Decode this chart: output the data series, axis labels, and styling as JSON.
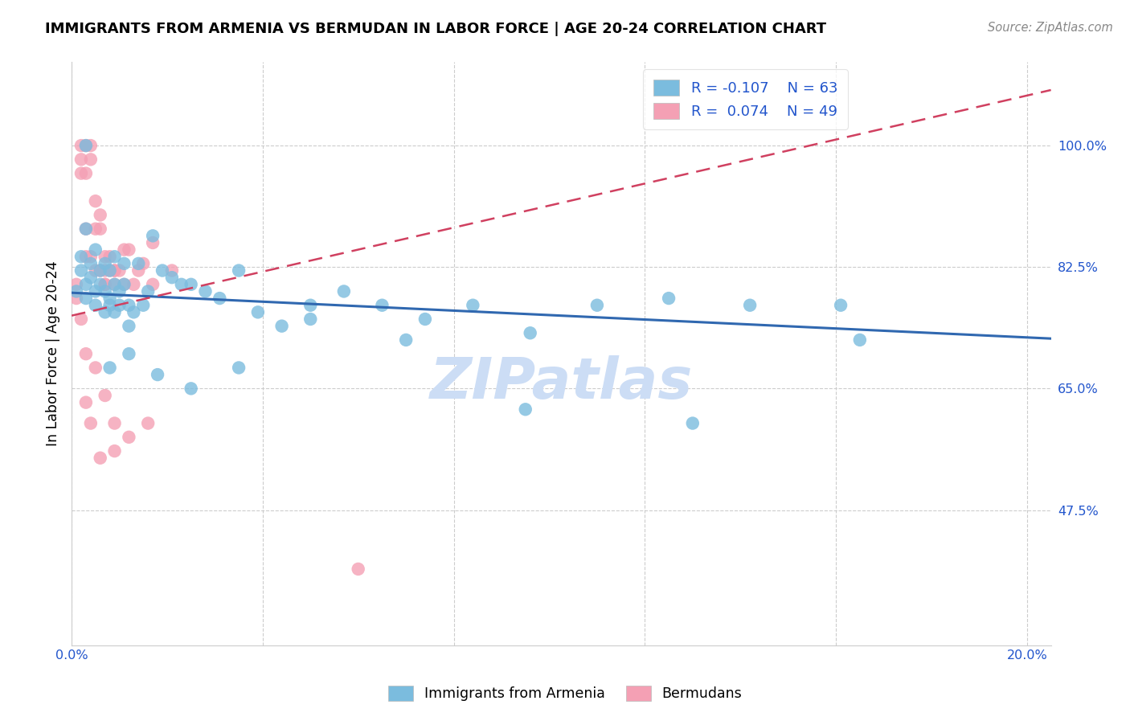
{
  "title": "IMMIGRANTS FROM ARMENIA VS BERMUDAN IN LABOR FORCE | AGE 20-24 CORRELATION CHART",
  "source_text": "Source: ZipAtlas.com",
  "ylabel": "In Labor Force | Age 20-24",
  "xlim": [
    0.0,
    0.205
  ],
  "ylim": [
    0.28,
    1.12
  ],
  "yticks": [
    0.475,
    0.65,
    0.825,
    1.0
  ],
  "ytick_labels": [
    "47.5%",
    "65.0%",
    "82.5%",
    "100.0%"
  ],
  "xticks": [
    0.0,
    0.04,
    0.08,
    0.12,
    0.16,
    0.2
  ],
  "xtick_labels": [
    "0.0%",
    "",
    "",
    "",
    "",
    "20.0%"
  ],
  "R_armenia": -0.107,
  "N_armenia": 63,
  "R_bermuda": 0.074,
  "N_bermuda": 49,
  "color_blue": "#7bbcde",
  "color_pink": "#f4a0b4",
  "color_blue_line": "#3068b0",
  "color_pink_line": "#d04060",
  "color_axis": "#2255cc",
  "watermark_color": "#ccddf5",
  "armenia_x": [
    0.001,
    0.002,
    0.002,
    0.003,
    0.003,
    0.003,
    0.004,
    0.004,
    0.005,
    0.005,
    0.006,
    0.006,
    0.007,
    0.007,
    0.007,
    0.008,
    0.008,
    0.008,
    0.009,
    0.009,
    0.009,
    0.01,
    0.01,
    0.011,
    0.011,
    0.012,
    0.012,
    0.013,
    0.014,
    0.015,
    0.016,
    0.017,
    0.019,
    0.021,
    0.023,
    0.025,
    0.028,
    0.031,
    0.035,
    0.039,
    0.044,
    0.05,
    0.057,
    0.065,
    0.074,
    0.084,
    0.096,
    0.11,
    0.125,
    0.142,
    0.161,
    0.003,
    0.005,
    0.008,
    0.012,
    0.018,
    0.025,
    0.035,
    0.05,
    0.07,
    0.095,
    0.13,
    0.165
  ],
  "armenia_y": [
    0.79,
    0.82,
    0.84,
    1.0,
    0.8,
    0.78,
    0.83,
    0.81,
    0.79,
    0.77,
    0.82,
    0.8,
    0.83,
    0.79,
    0.76,
    0.82,
    0.78,
    0.77,
    0.8,
    0.84,
    0.76,
    0.79,
    0.77,
    0.83,
    0.8,
    0.77,
    0.74,
    0.76,
    0.83,
    0.77,
    0.79,
    0.87,
    0.82,
    0.81,
    0.8,
    0.8,
    0.79,
    0.78,
    0.82,
    0.76,
    0.74,
    0.77,
    0.79,
    0.77,
    0.75,
    0.77,
    0.73,
    0.77,
    0.78,
    0.77,
    0.77,
    0.88,
    0.85,
    0.68,
    0.7,
    0.67,
    0.65,
    0.68,
    0.75,
    0.72,
    0.62,
    0.6,
    0.72
  ],
  "bermuda_x": [
    0.001,
    0.001,
    0.002,
    0.002,
    0.003,
    0.003,
    0.003,
    0.004,
    0.004,
    0.005,
    0.005,
    0.006,
    0.006,
    0.007,
    0.007,
    0.007,
    0.008,
    0.008,
    0.009,
    0.009,
    0.01,
    0.011,
    0.012,
    0.013,
    0.015,
    0.017,
    0.002,
    0.003,
    0.004,
    0.005,
    0.006,
    0.007,
    0.009,
    0.011,
    0.014,
    0.017,
    0.021,
    0.002,
    0.003,
    0.005,
    0.007,
    0.009,
    0.012,
    0.016,
    0.003,
    0.004,
    0.006,
    0.009,
    0.06
  ],
  "bermuda_y": [
    0.8,
    0.78,
    1.0,
    0.98,
    1.0,
    0.96,
    0.84,
    1.0,
    0.98,
    0.92,
    0.88,
    0.88,
    0.9,
    0.84,
    0.82,
    0.8,
    0.84,
    0.82,
    0.82,
    0.8,
    0.82,
    0.85,
    0.85,
    0.8,
    0.83,
    0.86,
    0.96,
    0.88,
    0.84,
    0.82,
    0.82,
    0.8,
    0.82,
    0.8,
    0.82,
    0.8,
    0.82,
    0.75,
    0.7,
    0.68,
    0.64,
    0.6,
    0.58,
    0.6,
    0.63,
    0.6,
    0.55,
    0.56,
    0.39
  ],
  "trendline_armenia_x0": 0.0,
  "trendline_armenia_y0": 0.788,
  "trendline_armenia_x1": 0.205,
  "trendline_armenia_y1": 0.722,
  "trendline_bermuda_x0": 0.0,
  "trendline_bermuda_y0": 0.755,
  "trendline_bermuda_x1": 0.205,
  "trendline_bermuda_y1": 1.08
}
